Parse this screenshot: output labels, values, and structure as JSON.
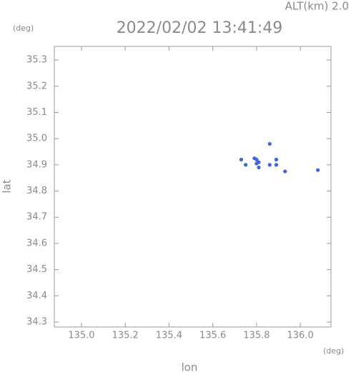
{
  "chart_data": {
    "type": "scatter",
    "title": "2022/02/02 13:41:49",
    "subtitle": "ALT(km) 2.0",
    "y_unit": "(deg)",
    "x_unit": "(deg)",
    "x_label": "lon",
    "y_label": "lat",
    "xlim": [
      134.876,
      136.14
    ],
    "ylim": [
      34.281,
      35.352
    ],
    "xticks": [
      {
        "value": 135,
        "label": "135.0"
      },
      135.2,
      135.4,
      135.6,
      135.8,
      {
        "value": 136,
        "label": "136.0"
      }
    ],
    "yticks": [
      35.3,
      35.2,
      35.1,
      {
        "value": 35,
        "label": "35.0"
      },
      34.9,
      34.8,
      34.7,
      34.6,
      34.5,
      34.4,
      34.3
    ],
    "grid": false,
    "series": [
      {
        "color": "#3d63e6",
        "x": [
          135.86,
          135.73,
          135.75,
          135.79,
          135.8,
          135.81,
          135.8,
          135.81,
          135.86,
          135.89,
          135.89,
          135.93,
          136.08
        ],
        "y": [
          34.98,
          34.92,
          34.9,
          34.925,
          34.92,
          34.91,
          34.905,
          34.89,
          34.9,
          34.92,
          34.9,
          34.875,
          34.88
        ]
      }
    ]
  }
}
